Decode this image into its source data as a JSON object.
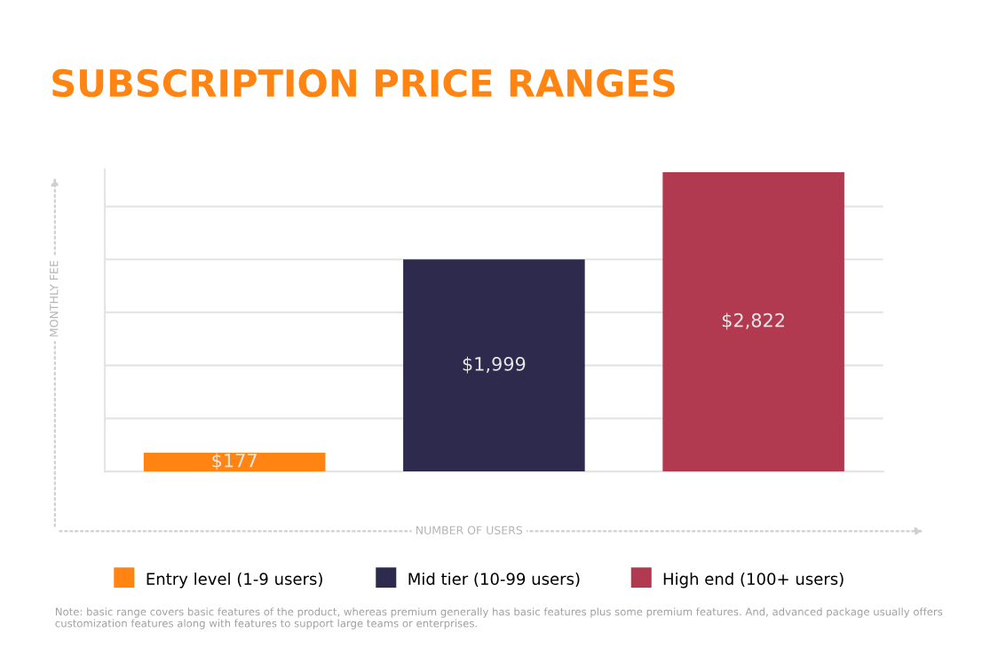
{
  "chart_data": {
    "type": "bar",
    "title": "SUBSCRIPTION PRICE RANGES",
    "xlabel": "NUMBER OF USERS",
    "ylabel": "MONTHLY FEE",
    "categories": [
      "Entry level (1-9 users)",
      "Mid tier (10-99 users)",
      "High end (100+ users)"
    ],
    "values": [
      177,
      1999,
      2822
    ],
    "colors": [
      "#ff8412",
      "#2d2a4e",
      "#b23a50"
    ],
    "value_labels": [
      "$177",
      "$1,999",
      "$2,822"
    ],
    "ylim": [
      0,
      2850
    ],
    "yticks": [
      {
        "value": 0,
        "label": null
      },
      {
        "value": 500,
        "label": null
      },
      {
        "value": 1000,
        "label": null
      },
      {
        "value": 1500,
        "label": null
      },
      {
        "value": 2000,
        "label": null
      },
      {
        "value": 2500,
        "label": null
      }
    ],
    "tick_labels": "x",
    "grid": "y",
    "annotations": [
      "Note: basic range covers basic features of the product, whereas premium generally has basic features plus some premium features. And, advanced package usually offers customization features along with features to support large teams or enterprises."
    ]
  }
}
